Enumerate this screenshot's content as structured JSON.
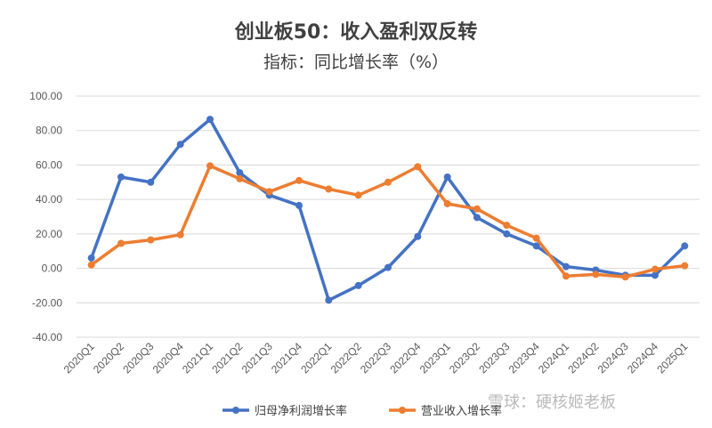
{
  "chart_data": {
    "type": "line",
    "title": "创业板50：收入盈利双反转",
    "subtitle": "指标：同比增长率（%）",
    "categories": [
      "2020Q1",
      "2020Q2",
      "2020Q3",
      "2020Q4",
      "2021Q1",
      "2021Q2",
      "2021Q3",
      "2021Q4",
      "2022Q1",
      "2022Q2",
      "2022Q3",
      "2022Q4",
      "2023Q1",
      "2023Q2",
      "2023Q3",
      "2023Q4",
      "2024Q1",
      "2024Q2",
      "2024Q3",
      "2024Q4",
      "2025Q1"
    ],
    "yticks": [
      "100.00",
      "80.00",
      "60.00",
      "40.00",
      "20.00",
      "0.00",
      "-20.00",
      "-40.00"
    ],
    "ylim": [
      -40,
      100
    ],
    "grid": true,
    "legend_position": "bottom",
    "series": [
      {
        "name": "归母净利润增长率",
        "color": "#4472C4",
        "values": [
          6,
          53,
          50,
          72,
          86.5,
          55.5,
          42.5,
          36.5,
          -18.5,
          -10,
          0.5,
          18.5,
          53,
          29.5,
          20,
          13,
          1,
          -1,
          -4,
          -4,
          13
        ]
      },
      {
        "name": "营业收入增长率",
        "color": "#ED7D31",
        "values": [
          2,
          14.5,
          16.5,
          19.5,
          59.5,
          52,
          44.5,
          51,
          46,
          42.5,
          50,
          59,
          37.5,
          34.5,
          25,
          17.5,
          -4.5,
          -3.5,
          -5,
          -0.5,
          1.5
        ]
      }
    ]
  },
  "watermark": "雪球：硬核姬老板"
}
